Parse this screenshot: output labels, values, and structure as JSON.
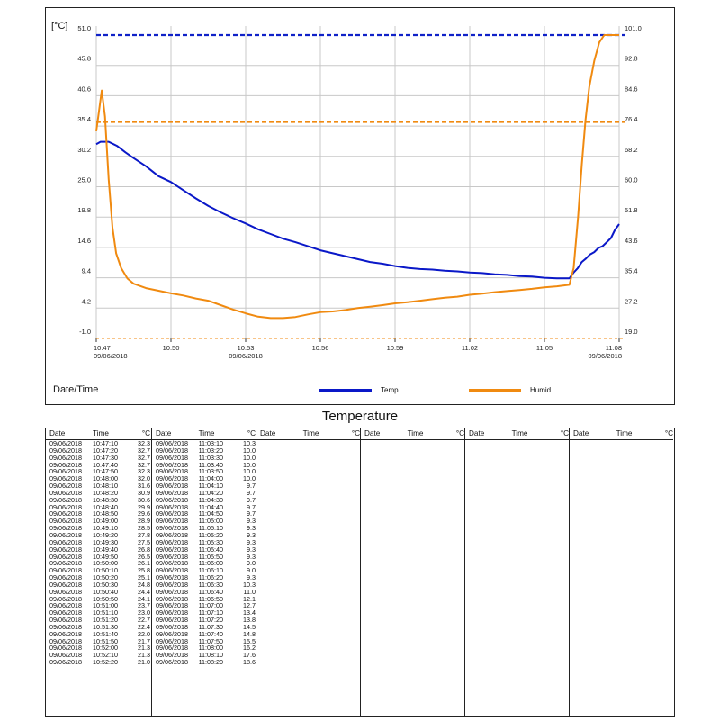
{
  "chart_data": {
    "type": "line",
    "xlabel": "Date/Time",
    "left_axis_unit": "[°C]",
    "left_ticks": [
      "51.0",
      "45.8",
      "40.6",
      "35.4",
      "30.2",
      "25.0",
      "19.8",
      "14.6",
      "9.4",
      "4.2",
      "-1.0"
    ],
    "right_ticks": [
      "101.0",
      "92.8",
      "84.6",
      "76.4",
      "68.2",
      "60.0",
      "51.8",
      "43.6",
      "35.4",
      "27.2",
      "19.0"
    ],
    "y_left_range": [
      -1.0,
      51.0
    ],
    "y_right_range": [
      19.0,
      101.0
    ],
    "x_range_minutes": [
      0,
      21
    ],
    "x_ticks": [
      {
        "label": "10:47",
        "sub": "09/06/2018",
        "min": 0
      },
      {
        "label": "10:50",
        "sub": "",
        "min": 3
      },
      {
        "label": "10:53",
        "sub": "09/06/2018",
        "min": 6
      },
      {
        "label": "10:56",
        "sub": "",
        "min": 9
      },
      {
        "label": "10:59",
        "sub": "",
        "min": 12
      },
      {
        "label": "11:02",
        "sub": "",
        "min": 15
      },
      {
        "label": "11:05",
        "sub": "",
        "min": 18
      },
      {
        "label": "11:08",
        "sub": "09/06/2018",
        "min": 21
      }
    ],
    "series": [
      {
        "name": "Temp.",
        "axis": "left",
        "color": "#0a18c8",
        "points": [
          [
            0,
            32.3
          ],
          [
            0.17,
            32.7
          ],
          [
            0.5,
            32.7
          ],
          [
            0.83,
            32.0
          ],
          [
            1.17,
            30.9
          ],
          [
            1.5,
            29.9
          ],
          [
            2.0,
            28.5
          ],
          [
            2.5,
            26.8
          ],
          [
            3.0,
            25.8
          ],
          [
            3.5,
            24.4
          ],
          [
            4.0,
            23.0
          ],
          [
            4.5,
            21.7
          ],
          [
            5.0,
            20.6
          ],
          [
            5.5,
            19.6
          ],
          [
            6.0,
            18.7
          ],
          [
            6.5,
            17.7
          ],
          [
            7.0,
            16.9
          ],
          [
            7.5,
            16.1
          ],
          [
            8.0,
            15.5
          ],
          [
            8.5,
            14.8
          ],
          [
            9.0,
            14.1
          ],
          [
            9.5,
            13.6
          ],
          [
            10.0,
            13.1
          ],
          [
            10.5,
            12.6
          ],
          [
            11.0,
            12.1
          ],
          [
            11.5,
            11.8
          ],
          [
            12.0,
            11.4
          ],
          [
            12.5,
            11.1
          ],
          [
            13.0,
            10.9
          ],
          [
            13.5,
            10.8
          ],
          [
            14.0,
            10.6
          ],
          [
            14.5,
            10.5
          ],
          [
            15.0,
            10.3
          ],
          [
            15.5,
            10.2
          ],
          [
            16.0,
            10.0
          ],
          [
            16.5,
            9.9
          ],
          [
            17.0,
            9.7
          ],
          [
            17.5,
            9.6
          ],
          [
            18.0,
            9.4
          ],
          [
            18.5,
            9.3
          ],
          [
            19.0,
            9.3
          ],
          [
            19.17,
            10.3
          ],
          [
            19.33,
            11.0
          ],
          [
            19.5,
            12.1
          ],
          [
            19.67,
            12.7
          ],
          [
            19.83,
            13.4
          ],
          [
            20.0,
            13.8
          ],
          [
            20.17,
            14.5
          ],
          [
            20.33,
            14.8
          ],
          [
            20.5,
            15.5
          ],
          [
            20.67,
            16.2
          ],
          [
            20.83,
            17.6
          ],
          [
            21.0,
            18.6
          ]
        ]
      },
      {
        "name": "Humid.",
        "axis": "right",
        "color": "#f08a10",
        "points": [
          [
            0,
            75
          ],
          [
            0.1,
            80
          ],
          [
            0.22,
            86
          ],
          [
            0.35,
            79
          ],
          [
            0.5,
            62
          ],
          [
            0.65,
            49
          ],
          [
            0.8,
            42
          ],
          [
            1.0,
            38
          ],
          [
            1.25,
            35.2
          ],
          [
            1.5,
            33.8
          ],
          [
            2.0,
            32.6
          ],
          [
            2.5,
            31.9
          ],
          [
            3.0,
            31.2
          ],
          [
            3.5,
            30.6
          ],
          [
            4.0,
            29.8
          ],
          [
            4.5,
            29.2
          ],
          [
            5.0,
            28.0
          ],
          [
            5.5,
            26.8
          ],
          [
            6.0,
            25.8
          ],
          [
            6.5,
            24.9
          ],
          [
            7.0,
            24.5
          ],
          [
            7.5,
            24.5
          ],
          [
            8.0,
            24.8
          ],
          [
            8.5,
            25.5
          ],
          [
            9.0,
            26.1
          ],
          [
            9.5,
            26.3
          ],
          [
            10.0,
            26.7
          ],
          [
            10.5,
            27.2
          ],
          [
            11.0,
            27.6
          ],
          [
            11.5,
            28.0
          ],
          [
            12.0,
            28.5
          ],
          [
            12.5,
            28.8
          ],
          [
            13.0,
            29.2
          ],
          [
            13.5,
            29.6
          ],
          [
            14.0,
            30.0
          ],
          [
            14.5,
            30.3
          ],
          [
            15.0,
            30.8
          ],
          [
            15.5,
            31.1
          ],
          [
            16.0,
            31.5
          ],
          [
            16.5,
            31.8
          ],
          [
            17.0,
            32.1
          ],
          [
            17.5,
            32.4
          ],
          [
            18.0,
            32.8
          ],
          [
            18.5,
            33.1
          ],
          [
            19.0,
            33.5
          ],
          [
            19.17,
            38
          ],
          [
            19.35,
            52
          ],
          [
            19.5,
            66
          ],
          [
            19.65,
            78
          ],
          [
            19.8,
            87
          ],
          [
            20.0,
            94
          ],
          [
            20.2,
            99
          ],
          [
            20.4,
            101
          ],
          [
            21.0,
            101
          ]
        ]
      }
    ],
    "reference_lines": [
      {
        "name": "temp-upper-limit",
        "axis": "left",
        "value": 51.0,
        "color": "#1022c8"
      },
      {
        "name": "humid-upper-limit",
        "axis": "right",
        "value": 77.5,
        "color": "#f08a10"
      },
      {
        "name": "temp-lower-limit",
        "axis": "left",
        "value": -1.0,
        "color": "#1022c8"
      },
      {
        "name": "humid-lower-limit",
        "axis": "right",
        "value": 19.0,
        "color": "#f08a10"
      }
    ]
  },
  "legend": {
    "temp": "Temp.",
    "humid": "Humid.",
    "temp_color": "#0a18c8",
    "humid_color": "#f08a10"
  },
  "table": {
    "title": "Temperature",
    "header": {
      "date": "Date",
      "time": "Time",
      "unit": "°C"
    },
    "columns": [
      [
        [
          "09/06/2018",
          "10:47:10",
          "32.3"
        ],
        [
          "09/06/2018",
          "10:47:20",
          "32.7"
        ],
        [
          "09/06/2018",
          "10:47:30",
          "32.7"
        ],
        [
          "09/06/2018",
          "10:47:40",
          "32.7"
        ],
        [
          "09/06/2018",
          "10:47:50",
          "32.3"
        ],
        [
          "09/06/2018",
          "10:48:00",
          "32.0"
        ],
        [
          "09/06/2018",
          "10:48:10",
          "31.6"
        ],
        [
          "09/06/2018",
          "10:48:20",
          "30.9"
        ],
        [
          "09/06/2018",
          "10:48:30",
          "30.6"
        ],
        [
          "09/06/2018",
          "10:48:40",
          "29.9"
        ],
        [
          "09/06/2018",
          "10:48:50",
          "29.6"
        ],
        [
          "09/06/2018",
          "10:49:00",
          "28.9"
        ],
        [
          "09/06/2018",
          "10:49:10",
          "28.5"
        ],
        [
          "09/06/2018",
          "10:49:20",
          "27.8"
        ],
        [
          "09/06/2018",
          "10:49:30",
          "27.5"
        ],
        [
          "09/06/2018",
          "10:49:40",
          "26.8"
        ],
        [
          "09/06/2018",
          "10:49:50",
          "26.5"
        ],
        [
          "09/06/2018",
          "10:50:00",
          "26.1"
        ],
        [
          "09/06/2018",
          "10:50:10",
          "25.8"
        ],
        [
          "09/06/2018",
          "10:50:20",
          "25.1"
        ],
        [
          "09/06/2018",
          "10:50:30",
          "24.8"
        ],
        [
          "09/06/2018",
          "10:50:40",
          "24.4"
        ],
        [
          "09/06/2018",
          "10:50:50",
          "24.1"
        ],
        [
          "09/06/2018",
          "10:51:00",
          "23.7"
        ],
        [
          "09/06/2018",
          "10:51:10",
          "23.0"
        ],
        [
          "09/06/2018",
          "10:51:20",
          "22.7"
        ],
        [
          "09/06/2018",
          "10:51:30",
          "22.4"
        ],
        [
          "09/06/2018",
          "10:51:40",
          "22.0"
        ],
        [
          "09/06/2018",
          "10:51:50",
          "21.7"
        ],
        [
          "09/06/2018",
          "10:52:00",
          "21.3"
        ],
        [
          "09/06/2018",
          "10:52:10",
          "21.3"
        ],
        [
          "09/06/2018",
          "10:52:20",
          "21.0"
        ]
      ],
      [
        [
          "09/06/2018",
          "11:03:10",
          "10.3"
        ],
        [
          "09/06/2018",
          "11:03:20",
          "10.0"
        ],
        [
          "09/06/2018",
          "11:03:30",
          "10.0"
        ],
        [
          "09/06/2018",
          "11:03:40",
          "10.0"
        ],
        [
          "09/06/2018",
          "11:03:50",
          "10.0"
        ],
        [
          "09/06/2018",
          "11:04:00",
          "10.0"
        ],
        [
          "09/06/2018",
          "11:04:10",
          "9.7"
        ],
        [
          "09/06/2018",
          "11:04:20",
          "9.7"
        ],
        [
          "09/06/2018",
          "11:04:30",
          "9.7"
        ],
        [
          "09/06/2018",
          "11:04:40",
          "9.7"
        ],
        [
          "09/06/2018",
          "11:04:50",
          "9.7"
        ],
        [
          "09/06/2018",
          "11:05:00",
          "9.3"
        ],
        [
          "09/06/2018",
          "11:05:10",
          "9.3"
        ],
        [
          "09/06/2018",
          "11:05:20",
          "9.3"
        ],
        [
          "09/06/2018",
          "11:05:30",
          "9.3"
        ],
        [
          "09/06/2018",
          "11:05:40",
          "9.3"
        ],
        [
          "09/06/2018",
          "11:05:50",
          "9.3"
        ],
        [
          "09/06/2018",
          "11:06:00",
          "9.0"
        ],
        [
          "09/06/2018",
          "11:06:10",
          "9.0"
        ],
        [
          "09/06/2018",
          "11:06:20",
          "9.3"
        ],
        [
          "09/06/2018",
          "11:06:30",
          "10.3"
        ],
        [
          "09/06/2018",
          "11:06:40",
          "11.0"
        ],
        [
          "09/06/2018",
          "11:06:50",
          "12.1"
        ],
        [
          "09/06/2018",
          "11:07:00",
          "12.7"
        ],
        [
          "09/06/2018",
          "11:07:10",
          "13.4"
        ],
        [
          "09/06/2018",
          "11:07:20",
          "13.8"
        ],
        [
          "09/06/2018",
          "11:07:30",
          "14.5"
        ],
        [
          "09/06/2018",
          "11:07:40",
          "14.8"
        ],
        [
          "09/06/2018",
          "11:07:50",
          "15.5"
        ],
        [
          "09/06/2018",
          "11:08:00",
          "16.2"
        ],
        [
          "09/06/2018",
          "11:08:10",
          "17.6"
        ],
        [
          "09/06/2018",
          "11:08:20",
          "18.6"
        ]
      ],
      [],
      [],
      [],
      []
    ]
  }
}
